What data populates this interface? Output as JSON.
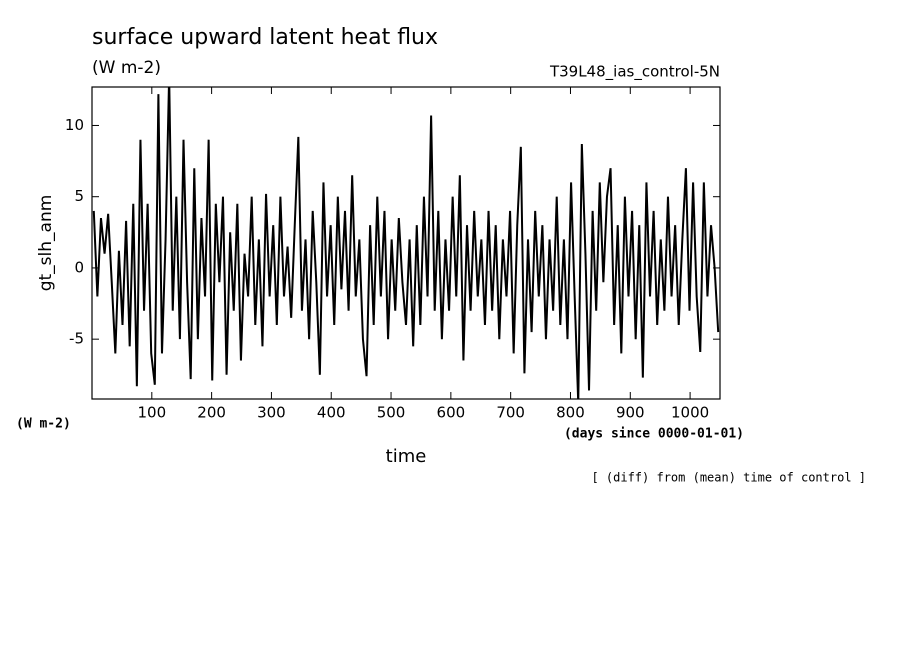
{
  "chart_data": {
    "type": "line",
    "title": "surface upward latent heat flux",
    "subtitle": "(W m-2)",
    "annotation": "T39L48_ias_control-5N",
    "y_label": "gt_slh_anm",
    "y_units": "(W m-2)",
    "x_label": "time",
    "x_units": "(days since 0000-01-01)",
    "footnote": "[ (diff) from (mean) time of control ]",
    "xlim": [
      0,
      1050
    ],
    "ylim": [
      -9.2,
      12.7
    ],
    "xticks": [
      100,
      200,
      300,
      400,
      500,
      600,
      700,
      800,
      900,
      1000
    ],
    "yticks": [
      -5,
      0,
      5,
      10
    ],
    "series": [
      {
        "color": "#000000",
        "x": [
          3,
          9,
          15,
          21,
          27,
          33,
          39,
          45,
          51,
          57,
          63,
          69,
          75,
          81,
          87,
          93,
          99,
          105,
          111,
          117,
          123,
          129,
          135,
          141,
          147,
          153,
          159,
          165,
          171,
          177,
          183,
          189,
          195,
          201,
          207,
          213,
          219,
          225,
          231,
          237,
          243,
          249,
          255,
          261,
          267,
          273,
          279,
          285,
          291,
          297,
          303,
          309,
          315,
          321,
          327,
          333,
          339,
          345,
          351,
          357,
          363,
          369,
          375,
          381,
          387,
          393,
          399,
          405,
          411,
          417,
          423,
          429,
          435,
          441,
          447,
          453,
          459,
          465,
          471,
          477,
          483,
          489,
          495,
          501,
          507,
          513,
          519,
          525,
          531,
          537,
          543,
          549,
          555,
          561,
          567,
          573,
          579,
          585,
          591,
          597,
          603,
          609,
          615,
          621,
          627,
          633,
          639,
          645,
          651,
          657,
          663,
          669,
          675,
          681,
          687,
          693,
          699,
          705,
          711,
          717,
          723,
          729,
          735,
          741,
          747,
          753,
          759,
          765,
          771,
          777,
          783,
          789,
          795,
          801,
          807,
          813,
          819,
          825,
          831,
          837,
          843,
          849,
          855,
          861,
          867,
          873,
          879,
          885,
          891,
          897,
          903,
          909,
          915,
          921,
          927,
          933,
          939,
          945,
          951,
          957,
          963,
          969,
          975,
          981,
          987,
          993,
          999,
          1005,
          1011,
          1017,
          1023,
          1029,
          1035,
          1041,
          1047
        ],
        "values": [
          4,
          -2,
          3.5,
          1,
          3.8,
          -1,
          -6,
          1.2,
          -4,
          3.3,
          -5.5,
          4.5,
          -8.3,
          9,
          -3,
          4.5,
          -6,
          -8.2,
          12.2,
          -6,
          2,
          13.5,
          -3,
          5,
          -5,
          9,
          -1,
          -7.8,
          7,
          -5,
          3.5,
          -2,
          9,
          -7.9,
          4.5,
          -1,
          5,
          -7.5,
          2.5,
          -3,
          4.5,
          -6.5,
          1,
          -2,
          5,
          -4,
          2,
          -5.5,
          5.2,
          -2,
          3,
          -4,
          5,
          -2,
          1.5,
          -3.5,
          3,
          9.2,
          -3,
          2,
          -5,
          4,
          -1,
          -7.5,
          6,
          -2,
          3,
          -4,
          5,
          -1.5,
          4,
          -3,
          6.5,
          -2,
          2,
          -5,
          -7.6,
          3,
          -4,
          5,
          -2,
          4,
          -5,
          2,
          -3,
          3.5,
          -1,
          -4,
          2,
          -5.5,
          3,
          -4,
          5,
          -2,
          10.7,
          -3,
          4,
          -5,
          2,
          -3,
          5,
          -2,
          6.5,
          -6.5,
          3,
          -3,
          4,
          -2,
          2,
          -4,
          4,
          -3,
          3,
          -5,
          2,
          -2,
          4,
          -6,
          3,
          8.5,
          -7.4,
          2,
          -4.5,
          4,
          -2,
          3,
          -5,
          2,
          -3,
          5,
          -4,
          2,
          -5,
          6,
          -2,
          -9.5,
          8.7,
          1,
          -8.6,
          4,
          -3,
          6,
          -1,
          5,
          7,
          -4,
          3,
          -6,
          5,
          -2,
          4,
          -5,
          3,
          -7.7,
          6,
          -2,
          4,
          -4,
          2,
          -3,
          5,
          -2,
          3,
          -4,
          2,
          7,
          -3,
          6,
          -2,
          -5.9,
          6,
          -2,
          3,
          0,
          -4.5
        ]
      }
    ]
  }
}
